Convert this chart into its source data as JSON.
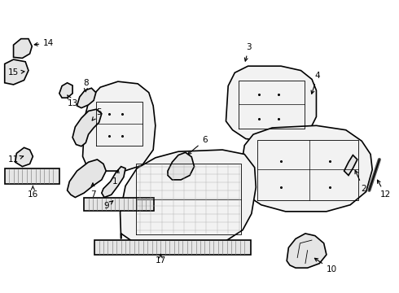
{
  "bg_color": "#ffffff",
  "line_color": "#000000",
  "line_width": 1.2,
  "fig_width": 4.9,
  "fig_height": 3.6,
  "dpi": 100
}
